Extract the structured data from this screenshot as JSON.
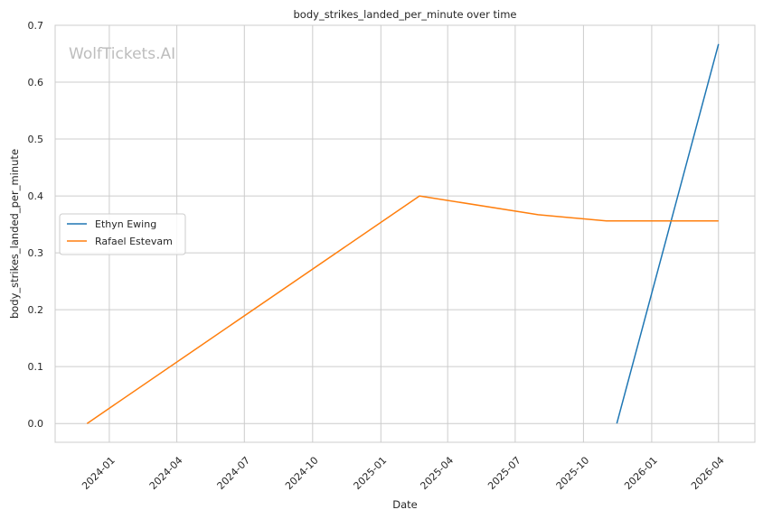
{
  "chart_data": {
    "type": "line",
    "title": "body_strikes_landed_per_minute over time",
    "xlabel": "Date",
    "ylabel": "body_strikes_landed_per_minute",
    "watermark": "WolfTickets.AI",
    "xlim": [
      "2023-10-20",
      "2026-05-20"
    ],
    "ylim": [
      -0.033,
      0.7
    ],
    "x_ticks": [
      "2024-01",
      "2024-04",
      "2024-07",
      "2024-10",
      "2025-01",
      "2025-04",
      "2025-07",
      "2025-10",
      "2026-01",
      "2026-04"
    ],
    "y_ticks": [
      "0.0",
      "0.1",
      "0.2",
      "0.3",
      "0.4",
      "0.5",
      "0.6",
      "0.7"
    ],
    "grid": true,
    "legend_position": "center-left",
    "series": [
      {
        "name": "Ethyn Ewing",
        "color": "#1f77b4",
        "points": [
          {
            "x": "2025-11-15",
            "y": 0.0
          },
          {
            "x": "2026-04-01",
            "y": 0.667
          }
        ]
      },
      {
        "name": "Rafael Estevam",
        "color": "#ff7f0e",
        "points": [
          {
            "x": "2023-12-02",
            "y": 0.0
          },
          {
            "x": "2025-02-22",
            "y": 0.4
          },
          {
            "x": "2025-08-01",
            "y": 0.367
          },
          {
            "x": "2025-11-01",
            "y": 0.356
          },
          {
            "x": "2026-04-01",
            "y": 0.356
          }
        ]
      }
    ]
  }
}
